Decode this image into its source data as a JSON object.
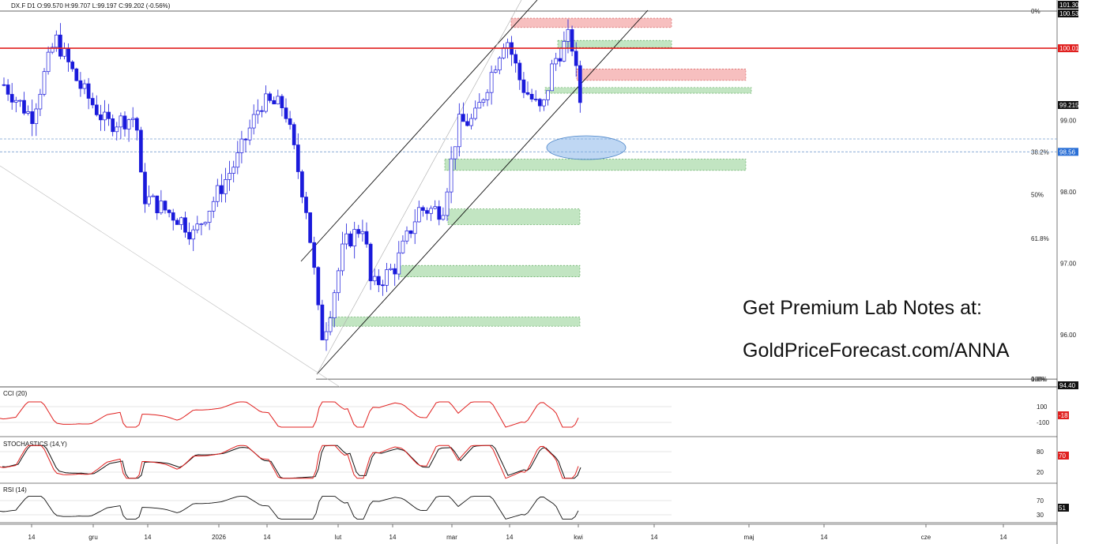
{
  "chart_data": {
    "type": "candlestick",
    "symbol_header": "DX.F  D1  O:99.570  H:99.707  L:99.197  C:99.202  (-0.56%)",
    "price_axis_ticks": [
      "96.00",
      "97.00",
      "98.00",
      "99.00"
    ],
    "price_tags": {
      "high": "101.30",
      "level_10053": "100.53",
      "red_line": "100.01",
      "last": "99.215",
      "blue": "98.56",
      "low": "94.40"
    },
    "fib_levels": [
      {
        "label": "0%",
        "price": 100.53
      },
      {
        "label": "38.2%",
        "price": 98.56
      },
      {
        "label": "50%",
        "price": 97.96
      },
      {
        "label": "61.8%",
        "price": 97.35
      },
      {
        "label": "100%",
        "price": 95.38
      }
    ],
    "fib_overlap_label": "0.0%",
    "x_axis_labels": [
      "14",
      "gru",
      "14",
      "2026",
      "14",
      "lut",
      "14",
      "mar",
      "14",
      "kwi",
      "14",
      "maj",
      "14",
      "cze",
      "14"
    ],
    "promo": {
      "line1": "Get Premium Lab Notes at:",
      "line2": "GoldPriceForecast.com/ANNA"
    },
    "indicators": [
      {
        "name": "cci",
        "label": "CCI (20)",
        "ticks": [
          "100",
          "-100"
        ],
        "last": "-18",
        "color": "#e0201f"
      },
      {
        "name": "stoch",
        "label": "STOCHASTICS (14,Y)",
        "ticks": [
          "80",
          "20"
        ],
        "last": "70",
        "color": "#e0201f"
      },
      {
        "name": "rsi",
        "label": "RSI (14)",
        "ticks": [
          "70",
          "30"
        ],
        "last": "51",
        "color": "#111111"
      }
    ],
    "colors": {
      "bull": "#ffffff",
      "bear": "#1a1adb",
      "red_line": "#e0201f",
      "green_zone": "#8fd08f",
      "red_zone": "#f08a8a",
      "ellipse": "#7fb0e8"
    }
  }
}
